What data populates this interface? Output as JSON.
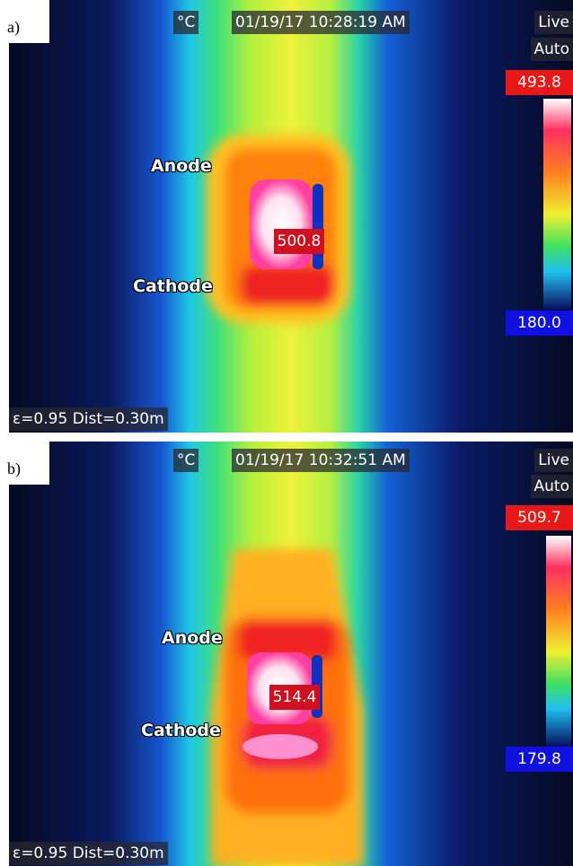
{
  "panels": [
    {
      "label": "a)",
      "unit": "°C",
      "timestamp": "01/19/17 10:28:19 AM",
      "mode": "Live",
      "range_mode": "Auto",
      "max": "493.8",
      "min": "180.0",
      "spot": "500.8",
      "anode": "Anode",
      "cathode": "Cathode",
      "params": "ε=0.95 Dist=0.30m"
    },
    {
      "label": "b)",
      "unit": "°C",
      "timestamp": "01/19/17 10:32:51 AM",
      "mode": "Live",
      "range_mode": "Auto",
      "max": "509.7",
      "min": "179.8",
      "spot": "514.4",
      "anode": "Anode",
      "cathode": "Cathode",
      "params": "ε=0.95 Dist=0.30m"
    }
  ]
}
